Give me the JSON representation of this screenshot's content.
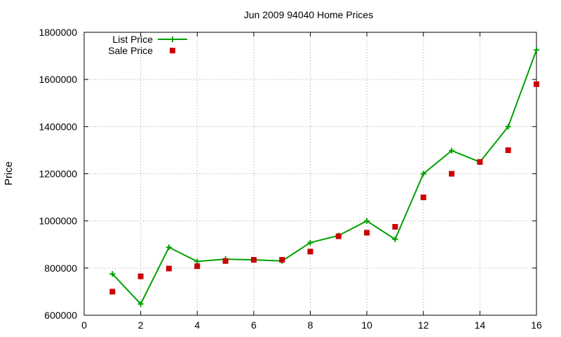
{
  "chart_data": {
    "type": "line",
    "title": "Jun 2009 94040 Home Prices",
    "xlabel": "",
    "ylabel": "Price",
    "xlim": [
      0,
      16
    ],
    "ylim": [
      600000,
      1800000
    ],
    "x_ticks": [
      0,
      2,
      4,
      6,
      8,
      10,
      12,
      14,
      16
    ],
    "y_ticks": [
      600000,
      800000,
      1000000,
      1200000,
      1400000,
      1600000,
      1800000
    ],
    "x_tick_labels": [
      "0",
      "2",
      "4",
      "6",
      "8",
      "10",
      "12",
      "14",
      "16"
    ],
    "y_tick_labels": [
      "600000",
      "800000",
      "1000000",
      "1200000",
      "1400000",
      "1600000",
      "1800000"
    ],
    "grid": true,
    "legend_position": "top-left",
    "series": [
      {
        "name": "List Price",
        "style": "line-with-plus-markers",
        "color": "#00a000",
        "x": [
          1,
          2,
          3,
          4,
          5,
          6,
          7,
          8,
          9,
          10,
          11,
          12,
          13,
          14,
          15,
          16
        ],
        "y": [
          775000,
          648000,
          888000,
          828000,
          838000,
          835000,
          830000,
          908000,
          938000,
          1000000,
          922000,
          1200000,
          1298000,
          1250000,
          1400000,
          1725000
        ]
      },
      {
        "name": "Sale Price",
        "style": "square-markers",
        "color": "#cc0000",
        "x": [
          1,
          2,
          3,
          4,
          5,
          6,
          7,
          8,
          9,
          10,
          11,
          12,
          13,
          14,
          15,
          16
        ],
        "y": [
          700000,
          765000,
          798000,
          808000,
          830000,
          835000,
          835000,
          870000,
          935000,
          950000,
          975000,
          1100000,
          1200000,
          1250000,
          1300000,
          1580000
        ]
      }
    ]
  }
}
